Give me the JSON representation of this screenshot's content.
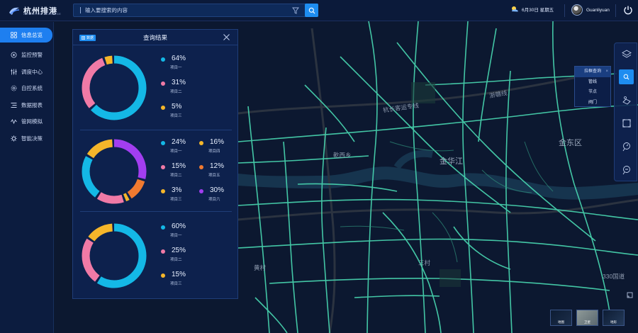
{
  "header": {
    "logo_text": "杭州排港",
    "logo_sub": "HANGZHOU DRAINAGE",
    "search_placeholder": "输入要搜索的内容",
    "date": "6月30日 星期五",
    "user_name": "Guanliyuan"
  },
  "sidebar": {
    "items": [
      {
        "label": "信息总览",
        "icon": "grid-icon"
      },
      {
        "label": "监控预警",
        "icon": "monitor-icon"
      },
      {
        "label": "调度中心",
        "icon": "sliders-icon"
      },
      {
        "label": "自控系统",
        "icon": "gear-icon"
      },
      {
        "label": "数据报表",
        "icon": "list-icon"
      },
      {
        "label": "管网模拟",
        "icon": "wave-icon"
      },
      {
        "label": "智能决策",
        "icon": "cog-icon"
      }
    ]
  },
  "panel": {
    "badge": "数据",
    "title": "查询结果"
  },
  "chart_data": [
    {
      "type": "pie",
      "categories": [
        "项目一",
        "项目二",
        "项目三"
      ],
      "values": [
        64,
        31,
        5
      ],
      "labels": [
        "64%",
        "31%",
        "5%"
      ],
      "colors": [
        "#14b8e6",
        "#f07aa6",
        "#f5b62a"
      ]
    },
    {
      "type": "pie",
      "categories": [
        "项目一",
        "项目二",
        "项目三",
        "项目四",
        "项目五",
        "项目六"
      ],
      "values": [
        24,
        15,
        3,
        16,
        12,
        30
      ],
      "labels": [
        "24%",
        "15%",
        "3%",
        "16%",
        "12%",
        "30%"
      ],
      "colors": [
        "#14b8e6",
        "#f07aa6",
        "#f5b62a",
        "#f5b62a",
        "#f07a30",
        "#a23ef0"
      ]
    },
    {
      "type": "pie",
      "categories": [
        "项目一",
        "项目二",
        "项目三"
      ],
      "values": [
        60,
        25,
        15
      ],
      "labels": [
        "60%",
        "25%",
        "15%"
      ],
      "colors": [
        "#14b8e6",
        "#f07aa6",
        "#f5b62a"
      ]
    }
  ],
  "popup": {
    "items": [
      "拉框查询",
      "管线",
      "节点",
      "阀门"
    ]
  },
  "map": {
    "labels": [
      {
        "text": "金东区",
        "style": "big"
      },
      {
        "text": "金华江",
        "style": "big"
      },
      {
        "text": "浙赣线",
        "style": "normal"
      },
      {
        "text": "杭长客运专线",
        "style": "normal"
      },
      {
        "text": "330国道",
        "style": "normal"
      },
      {
        "text": "三村",
        "style": "normal"
      },
      {
        "text": "黄村",
        "style": "normal"
      },
      {
        "text": "乾西乡",
        "style": "normal"
      }
    ],
    "basemaps": [
      "地图",
      "卫星",
      "地形"
    ]
  },
  "colors": {
    "accent": "#1e8df0",
    "road": "#4fe0b8"
  }
}
